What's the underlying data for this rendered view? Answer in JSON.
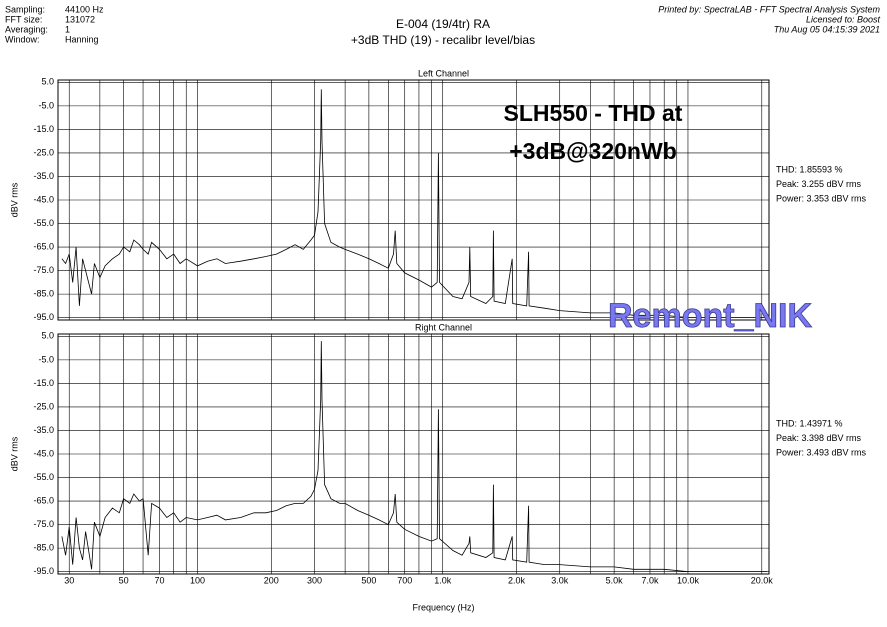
{
  "header": {
    "info_labels": [
      "Sampling:",
      "FFT size:",
      "Averaging:",
      "Window:"
    ],
    "info_values": [
      "44100 Hz",
      "131072",
      "1",
      "Hanning"
    ],
    "title": "E-004 (19/4tr)  RA",
    "subtitle": "+3dB THD (19) - recalibr level/bias",
    "printed_by": [
      "Printed by: SpectraLAB - FFT Spectral Analysis System",
      "Licensed to: Boost",
      "Thu Aug 05 04:15:39 2021"
    ]
  },
  "watermark": "Remont_NIK",
  "chart_data": [
    {
      "type": "line",
      "title": "Left Channel",
      "y_label": "dBV rms",
      "log_x": true,
      "grid": true,
      "color": "#000000",
      "annotation": [
        "SLH550 - THD at",
        "+3dB@320nWb"
      ],
      "stats": [
        "THD: 1.85593 %",
        "Peak: 3.255 dBV rms",
        "Power: 3.353 dBV rms"
      ],
      "xlim": [
        27,
        21400
      ],
      "ylim": [
        -96,
        6
      ],
      "xticks": [
        30,
        50,
        70,
        100,
        200,
        300,
        500,
        700,
        {
          "value": 1000,
          "label": "1.0k"
        },
        {
          "value": 2000,
          "label": "2.0k"
        },
        {
          "value": 3000,
          "label": "3.0k"
        },
        {
          "value": 5000,
          "label": "5.0k"
        },
        {
          "value": 7000,
          "label": "7.0k"
        },
        {
          "value": 10000,
          "label": "10.0k"
        },
        {
          "value": 20000,
          "label": "20.0k"
        }
      ],
      "xminor": [
        40,
        60,
        80,
        90,
        400,
        600,
        800,
        900,
        4000,
        6000,
        8000,
        9000
      ],
      "yticks": [
        {
          "value": 5,
          "label": "5.0"
        },
        {
          "value": -5,
          "label": "-5.0"
        },
        {
          "value": -15,
          "label": "-15.0"
        },
        {
          "value": -25,
          "label": "-25.0"
        },
        {
          "value": -35,
          "label": "-35.0"
        },
        {
          "value": -45,
          "label": "-45.0"
        },
        {
          "value": -55,
          "label": "-55.0"
        },
        {
          "value": -65,
          "label": "-65.0"
        },
        {
          "value": -75,
          "label": "-75.0"
        },
        {
          "value": -85,
          "label": "-85.0"
        },
        {
          "value": -95,
          "label": "-95.0"
        }
      ],
      "x": [
        28,
        29,
        30,
        31,
        32,
        33,
        34,
        35,
        37,
        38,
        40,
        42,
        45,
        48,
        50,
        53,
        55,
        58,
        60,
        63,
        65,
        70,
        75,
        80,
        85,
        90,
        100,
        110,
        120,
        130,
        150,
        170,
        190,
        210,
        230,
        250,
        270,
        290,
        300,
        310,
        318,
        320,
        322,
        330,
        350,
        380,
        400,
        450,
        500,
        550,
        600,
        630,
        640,
        650,
        700,
        800,
        900,
        950,
        960,
        970,
        1100,
        1200,
        1280,
        1290,
        1300,
        1500,
        1600,
        1610,
        1620,
        1800,
        1920,
        1930,
        2200,
        2240,
        2250,
        2600,
        3000,
        4000,
        5000,
        6000,
        8000,
        10000,
        15000,
        20000,
        21000
      ],
      "values": [
        -70,
        -72,
        -68,
        -80,
        -65,
        -90,
        -70,
        -75,
        -85,
        -72,
        -78,
        -73,
        -70,
        -68,
        -65,
        -67,
        -62,
        -64,
        -66,
        -68,
        -63,
        -66,
        -70,
        -68,
        -72,
        -70,
        -73,
        -71,
        -70,
        -72,
        -71,
        -70,
        -69,
        -68,
        -66,
        -64,
        -66,
        -62,
        -60,
        -50,
        -20,
        2,
        -20,
        -55,
        -63,
        -65,
        -66,
        -68,
        -70,
        -72,
        -74,
        -68,
        -58,
        -72,
        -76,
        -79,
        -82,
        -80,
        -25,
        -80,
        -86,
        -87,
        -80,
        -65,
        -86,
        -89,
        -86,
        -58,
        -88,
        -89,
        -70,
        -89,
        -90,
        -67,
        -90,
        -91,
        -92,
        -93,
        -93,
        -94,
        -94,
        -95,
        -95,
        -95,
        -95
      ]
    },
    {
      "type": "line",
      "title": "Right Channel",
      "y_label": "dBV rms",
      "x_label": "Frequency (Hz)",
      "log_x": true,
      "grid": true,
      "color": "#000000",
      "stats": [
        "THD: 1.43971 %",
        "Peak: 3.398 dBV rms",
        "Power: 3.493 dBV rms"
      ],
      "xlim": [
        27,
        21400
      ],
      "ylim": [
        -96,
        6
      ],
      "xticks": [
        30,
        50,
        70,
        100,
        200,
        300,
        500,
        700,
        {
          "value": 1000,
          "label": "1.0k"
        },
        {
          "value": 2000,
          "label": "2.0k"
        },
        {
          "value": 3000,
          "label": "3.0k"
        },
        {
          "value": 5000,
          "label": "5.0k"
        },
        {
          "value": 7000,
          "label": "7.0k"
        },
        {
          "value": 10000,
          "label": "10.0k"
        },
        {
          "value": 20000,
          "label": "20.0k"
        }
      ],
      "xminor": [
        40,
        60,
        80,
        90,
        400,
        600,
        800,
        900,
        4000,
        6000,
        8000,
        9000
      ],
      "yticks": [
        {
          "value": 5,
          "label": "5.0"
        },
        {
          "value": -5,
          "label": "-5.0"
        },
        {
          "value": -15,
          "label": "-15.0"
        },
        {
          "value": -25,
          "label": "-25.0"
        },
        {
          "value": -35,
          "label": "-35.0"
        },
        {
          "value": -45,
          "label": "-45.0"
        },
        {
          "value": -55,
          "label": "-55.0"
        },
        {
          "value": -65,
          "label": "-65.0"
        },
        {
          "value": -75,
          "label": "-75.0"
        },
        {
          "value": -85,
          "label": "-85.0"
        },
        {
          "value": -95,
          "label": "-95.0"
        }
      ],
      "x": [
        28,
        29,
        30,
        31,
        32,
        33,
        34,
        35,
        37,
        38,
        40,
        42,
        45,
        48,
        50,
        53,
        55,
        58,
        60,
        63,
        65,
        70,
        75,
        80,
        85,
        90,
        100,
        110,
        120,
        130,
        150,
        170,
        190,
        210,
        230,
        250,
        270,
        290,
        300,
        310,
        318,
        320,
        322,
        330,
        350,
        380,
        400,
        450,
        500,
        550,
        600,
        630,
        640,
        650,
        700,
        800,
        900,
        950,
        960,
        970,
        1100,
        1200,
        1280,
        1290,
        1300,
        1500,
        1600,
        1610,
        1620,
        1800,
        1920,
        1930,
        2200,
        2240,
        2250,
        2600,
        3000,
        4000,
        5000,
        6000,
        8000,
        10000,
        15000,
        20000,
        21000
      ],
      "values": [
        -80,
        -88,
        -76,
        -92,
        -72,
        -85,
        -90,
        -78,
        -94,
        -74,
        -80,
        -72,
        -68,
        -70,
        -64,
        -66,
        -62,
        -65,
        -64,
        -88,
        -66,
        -68,
        -72,
        -70,
        -74,
        -72,
        -73,
        -72,
        -71,
        -73,
        -72,
        -70,
        -70,
        -69,
        -67,
        -66,
        -66,
        -63,
        -60,
        -52,
        -22,
        3,
        -22,
        -58,
        -64,
        -66,
        -66,
        -69,
        -71,
        -73,
        -75,
        -70,
        -62,
        -74,
        -77,
        -80,
        -82,
        -81,
        -26,
        -81,
        -86,
        -88,
        -83,
        -80,
        -87,
        -89,
        -87,
        -58,
        -89,
        -90,
        -80,
        -90,
        -91,
        -67,
        -91,
        -92,
        -92,
        -93,
        -93,
        -94,
        -94,
        -95,
        -95,
        -95,
        -95
      ]
    }
  ]
}
